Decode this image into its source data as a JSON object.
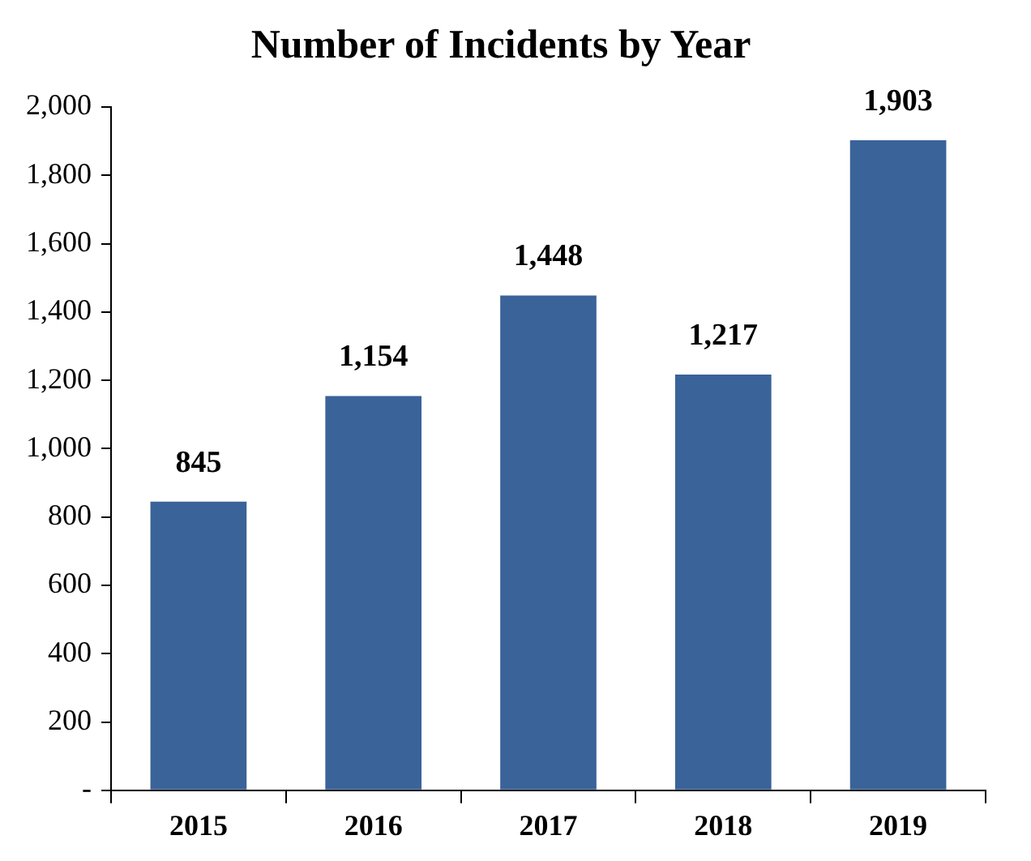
{
  "chart_data": {
    "type": "bar",
    "title": "Number of Incidents by Year",
    "categories": [
      "2015",
      "2016",
      "2017",
      "2018",
      "2019"
    ],
    "values": [
      845,
      1154,
      1448,
      1217,
      1903
    ],
    "value_labels": [
      "845",
      "1,154",
      "1,448",
      "1,217",
      "1,903"
    ],
    "color": "#3a6399",
    "ylim": [
      0,
      2000
    ],
    "yticks": [
      {
        "value": 0,
        "label": "-"
      },
      {
        "value": 200,
        "label": "200"
      },
      {
        "value": 400,
        "label": "400"
      },
      {
        "value": 600,
        "label": "600"
      },
      {
        "value": 800,
        "label": "800"
      },
      {
        "value": 1000,
        "label": "1,000"
      },
      {
        "value": 1200,
        "label": "1,200"
      },
      {
        "value": 1400,
        "label": "1,400"
      },
      {
        "value": 1600,
        "label": "1,600"
      },
      {
        "value": 1800,
        "label": "1,800"
      },
      {
        "value": 2000,
        "label": "2,000"
      }
    ],
    "grid": false,
    "legend": false
  }
}
